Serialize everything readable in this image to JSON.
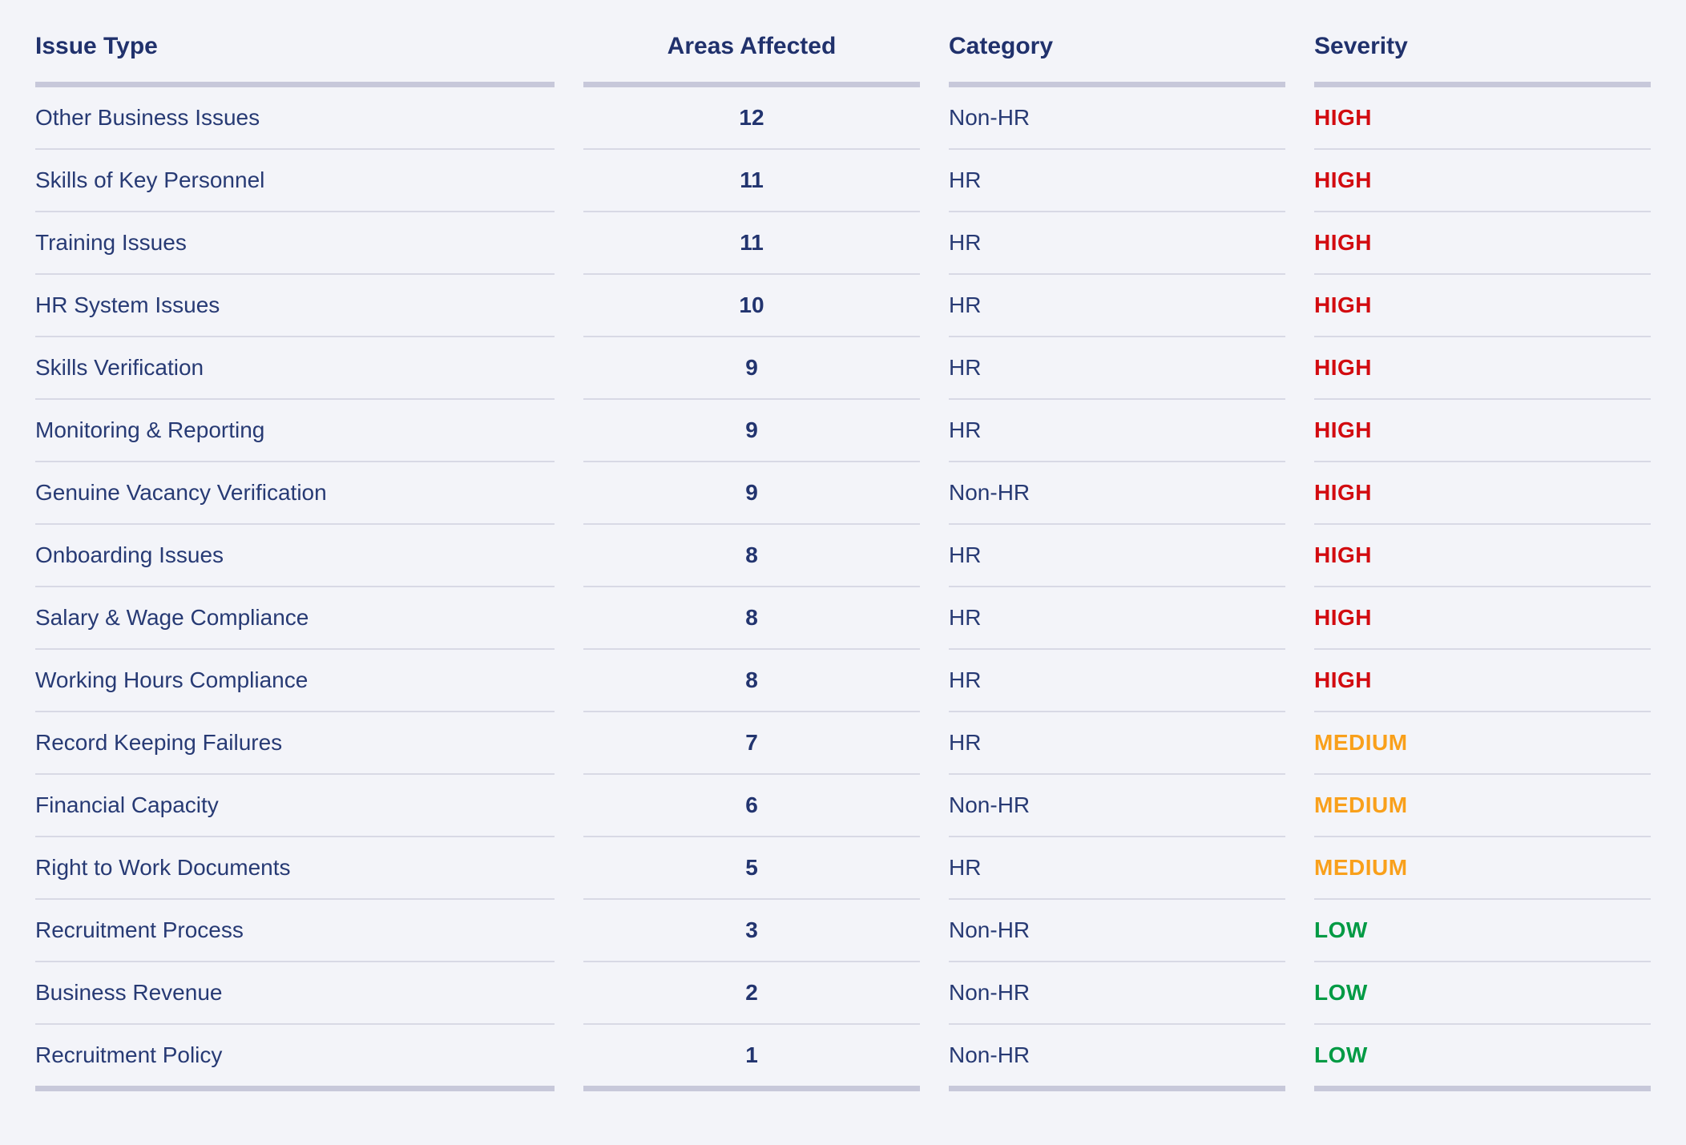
{
  "page": {
    "background_color": "#f3f4f9",
    "text_color": "#273a74",
    "header_text_color": "#20316c",
    "thick_rule_color": "#c7c8da",
    "thin_rule_color": "#d8d9e5"
  },
  "colors": {
    "severity": {
      "HIGH": "#d20b10",
      "MEDIUM": "#f9a01b",
      "LOW": "#009a44"
    }
  },
  "chart_data": {
    "type": "table",
    "columns": [
      {
        "label": "Issue Type",
        "align": "left"
      },
      {
        "label": "Areas Affected",
        "align": "center"
      },
      {
        "label": "Category",
        "align": "left"
      },
      {
        "label": "Severity",
        "align": "left"
      }
    ],
    "rows": [
      {
        "issue_type": "Other Business Issues",
        "areas_affected": 12,
        "category": "Non-HR",
        "severity": "HIGH"
      },
      {
        "issue_type": "Skills of Key Personnel",
        "areas_affected": 11,
        "category": "HR",
        "severity": "HIGH"
      },
      {
        "issue_type": "Training Issues",
        "areas_affected": 11,
        "category": "HR",
        "severity": "HIGH"
      },
      {
        "issue_type": "HR System Issues",
        "areas_affected": 10,
        "category": "HR",
        "severity": "HIGH"
      },
      {
        "issue_type": "Skills Verification",
        "areas_affected": 9,
        "category": "HR",
        "severity": "HIGH"
      },
      {
        "issue_type": "Monitoring & Reporting",
        "areas_affected": 9,
        "category": "HR",
        "severity": "HIGH"
      },
      {
        "issue_type": "Genuine Vacancy Verification",
        "areas_affected": 9,
        "category": "Non-HR",
        "severity": "HIGH"
      },
      {
        "issue_type": "Onboarding Issues",
        "areas_affected": 8,
        "category": "HR",
        "severity": "HIGH"
      },
      {
        "issue_type": "Salary & Wage Compliance",
        "areas_affected": 8,
        "category": "HR",
        "severity": "HIGH"
      },
      {
        "issue_type": "Working Hours Compliance",
        "areas_affected": 8,
        "category": "HR",
        "severity": "HIGH"
      },
      {
        "issue_type": "Record Keeping Failures",
        "areas_affected": 7,
        "category": "HR",
        "severity": "MEDIUM"
      },
      {
        "issue_type": "Financial Capacity",
        "areas_affected": 6,
        "category": "Non-HR",
        "severity": "MEDIUM"
      },
      {
        "issue_type": "Right to Work Documents",
        "areas_affected": 5,
        "category": "HR",
        "severity": "MEDIUM"
      },
      {
        "issue_type": "Recruitment Process",
        "areas_affected": 3,
        "category": "Non-HR",
        "severity": "LOW"
      },
      {
        "issue_type": "Business Revenue",
        "areas_affected": 2,
        "category": "Non-HR",
        "severity": "LOW"
      },
      {
        "issue_type": "Recruitment Policy",
        "areas_affected": 1,
        "category": "Non-HR",
        "severity": "LOW"
      }
    ]
  }
}
